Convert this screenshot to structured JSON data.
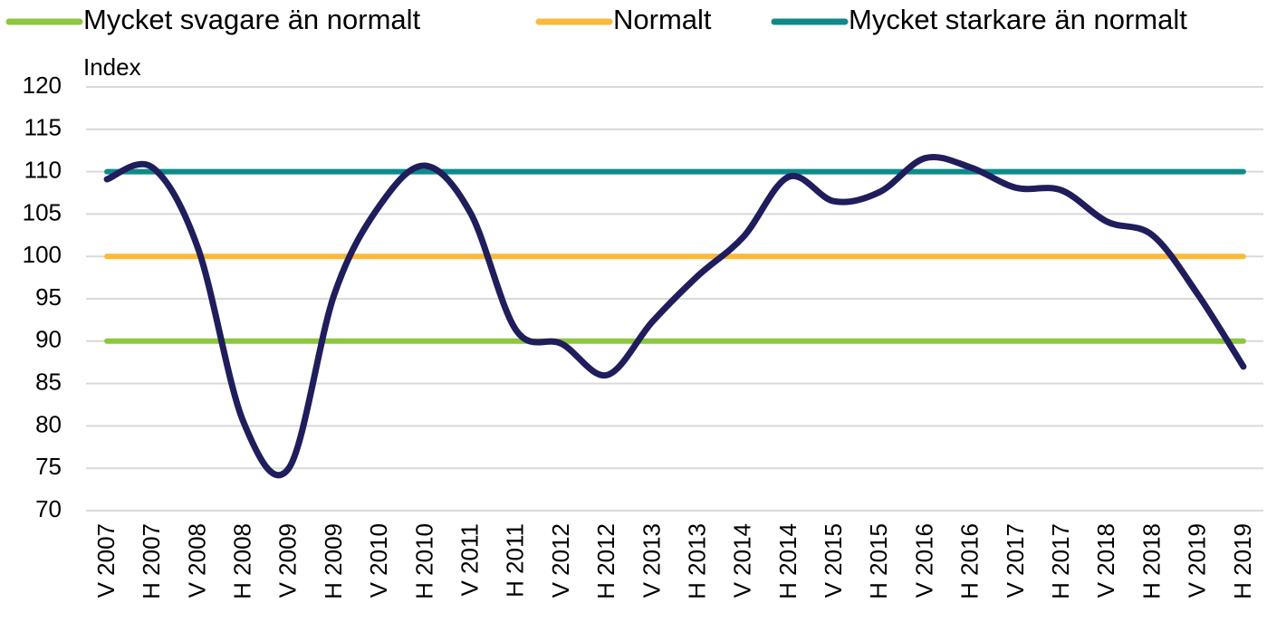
{
  "chart_data": {
    "type": "line",
    "y_label": "Index",
    "categories": [
      "V 2007",
      "H 2007",
      "V 2008",
      "H 2008",
      "V 2009",
      "H 2009",
      "V 2010",
      "H 2010",
      "V 2011",
      "H 2011",
      "V 2012",
      "H 2012",
      "V 2013",
      "H 2013",
      "V 2014",
      "H 2014",
      "V 2015",
      "H 2015",
      "V 2016",
      "H 2016",
      "V 2017",
      "H 2017",
      "V 2018",
      "H 2018",
      "V 2019",
      "H 2019"
    ],
    "series": [
      {
        "name": "Mycket svagare än normalt",
        "color": "#8dc63f",
        "values": [
          90,
          90,
          90,
          90,
          90,
          90,
          90,
          90,
          90,
          90,
          90,
          90,
          90,
          90,
          90,
          90,
          90,
          90,
          90,
          90,
          90,
          90,
          90,
          90,
          90,
          90
        ]
      },
      {
        "name": "Normalt",
        "color": "#fbb93a",
        "values": [
          100,
          100,
          100,
          100,
          100,
          100,
          100,
          100,
          100,
          100,
          100,
          100,
          100,
          100,
          100,
          100,
          100,
          100,
          100,
          100,
          100,
          100,
          100,
          100,
          100,
          100
        ]
      },
      {
        "name": "Mycket starkare än normalt",
        "color": "#0e8a8a",
        "values": [
          110,
          110,
          110,
          110,
          110,
          110,
          110,
          110,
          110,
          110,
          110,
          110,
          110,
          110,
          110,
          110,
          110,
          110,
          110,
          110,
          110,
          110,
          110,
          110,
          110,
          110
        ]
      },
      {
        "color": "#1f1d5c",
        "values": [
          109.1,
          110.5,
          101,
          80.5,
          75,
          95.5,
          106,
          110.7,
          105.1,
          91.3,
          89.7,
          86,
          92.3,
          97.7,
          102.3,
          109.4,
          106.5,
          107.6,
          111.6,
          110.5,
          108.1,
          107.8,
          104.1,
          102.5,
          95.5,
          87
        ]
      }
    ],
    "ylim": [
      70,
      120
    ],
    "yticks": [
      70,
      75,
      80,
      85,
      90,
      95,
      100,
      105,
      110,
      115,
      120
    ],
    "grid": true,
    "legend": "top"
  }
}
